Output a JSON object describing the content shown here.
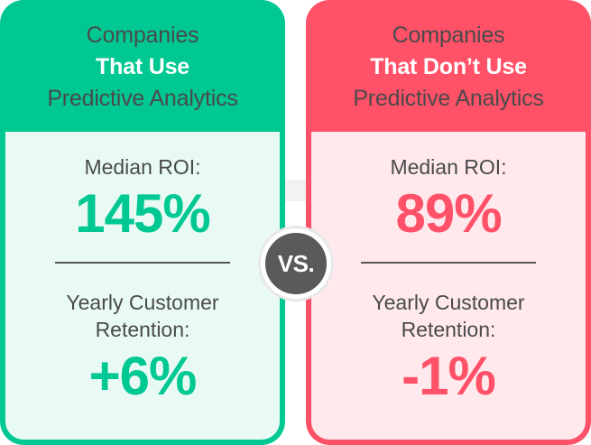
{
  "left_card": {
    "title_line1": "Companies",
    "title_line2": "That Use",
    "title_line3": "Predictive Analytics",
    "roi_label": "Median ROI:",
    "roi_value": "145%",
    "retention_label_line1": "Yearly Customer",
    "retention_label_line2": "Retention:",
    "retention_value": "+6%",
    "accent_color": "#00c893",
    "background_color": "#e9faf5"
  },
  "right_card": {
    "title_line1": "Companies",
    "title_line2": "That Don’t Use",
    "title_line3": "Predictive Analytics",
    "roi_label": "Median ROI:",
    "roi_value": "89%",
    "retention_label_line1": "Yearly Customer",
    "retention_label_line2": "Retention:",
    "retention_value": "-1%",
    "accent_color": "#ff5168",
    "background_color": "#ffe9ec"
  },
  "vs_badge": {
    "label": "VS.",
    "color": "#5a5a5a"
  }
}
